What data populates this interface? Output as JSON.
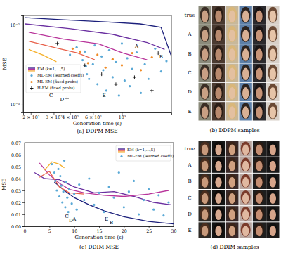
{
  "chart_data": [
    {
      "type": "scatter",
      "title": "(a) DDPM MSE",
      "x_label": "Generation time (s)",
      "y_label": "MSE",
      "log": true,
      "grid": false,
      "legend": "lower left",
      "xlim": [
        175,
        2400
      ],
      "ylim": [
        0.0008,
        0.013
      ],
      "xticks": [
        {
          "value": 200,
          "label": "2 × 10²"
        },
        {
          "value": 300,
          "label": "3 × 10²"
        },
        {
          "value": 400,
          "label": "4 × 10²"
        },
        {
          "value": 600,
          "label": "6 × 10²"
        },
        {
          "value": 1000,
          "label": "10³"
        }
      ],
      "yticks": [
        {
          "value": 0.001,
          "label": "10⁻³"
        },
        {
          "value": 0.01,
          "label": "10⁻²"
        }
      ],
      "series": [
        {
          "name": "EM (k=1,...,5)",
          "type": "line",
          "colors": [
            "#1b1f7b",
            "#6a2fa0",
            "#b8339a",
            "#e8604a",
            "#f5b02a"
          ],
          "x": [
            [
              181,
              357,
              748,
              1382,
              2000,
              2380
            ],
            [
              181,
              404,
              844,
              1564,
              2130
            ],
            [
              193,
              357,
              661,
              1017,
              1564
            ],
            [
              193,
              315,
              457,
              620
            ],
            [
              193,
              247,
              315
            ]
          ],
          "values": [
            [
              0.0122,
              0.0115,
              0.0108,
              0.0102,
              0.00924,
              0.00418
            ],
            [
              0.0102,
              0.00888,
              0.00757,
              0.00597,
              0.0049
            ],
            [
              0.00804,
              0.0066,
              0.00574,
              0.00443,
              0.00364
            ],
            [
              0.00621,
              0.0051,
              0.00443,
              0.00364
            ],
            [
              0.0049,
              0.00418,
              0.00343
            ]
          ]
        },
        {
          "name": "ML-EM (learned coeffs)",
          "type": "scatter",
          "marker": "circle",
          "color": "#5aa9d6",
          "x": [
            400,
            530,
            450,
            540,
            500,
            520,
            560,
            600,
            620,
            650,
            700,
            720,
            760,
            800,
            850,
            900,
            950,
            1000,
            1050,
            1100,
            1150,
            1200,
            1300,
            1400,
            1500,
            1600,
            1800,
            2000,
            2200
          ],
          "values": [
            0.0042,
            0.003,
            0.0052,
            0.0024,
            0.0036,
            0.0046,
            0.0021,
            0.0032,
            0.0055,
            0.0018,
            0.004,
            0.0027,
            0.0015,
            0.0048,
            0.0022,
            0.0034,
            0.0013,
            0.0058,
            0.002,
            0.0038,
            0.0017,
            0.0028,
            0.0045,
            0.0014,
            0.0032,
            0.0021,
            0.005,
            0.0026,
            0.0035
          ]
        },
        {
          "name": "ML-EM (fixed probs)",
          "type": "scatter",
          "marker": "circle",
          "color": "#f08a24",
          "x": [
            420,
            480,
            550,
            650,
            750,
            850,
            1000,
            1200,
            1400,
            1700
          ],
          "values": [
            0.005,
            0.0046,
            0.0033,
            0.0042,
            0.0029,
            0.0037,
            0.0031,
            0.0044,
            0.0027,
            0.0039
          ]
        },
        {
          "name": "H-EM (fixed probs)",
          "type": "scatter",
          "marker": "plus",
          "color": "#000000",
          "x": [
            320,
            380,
            520,
            700,
            900,
            1250,
            1700,
            1900
          ],
          "values": [
            0.0058,
            0.0012,
            0.0031,
            0.0024,
            0.0018,
            0.0022,
            0.0015,
            0.0044
          ]
        }
      ],
      "annotations": [
        {
          "text": "A",
          "x": 1300,
          "y": 0.0054
        },
        {
          "text": "B",
          "x": 2000,
          "y": 0.004
        },
        {
          "text": "C",
          "x": 286,
          "y": 0.00132
        },
        {
          "text": "D",
          "x": 348,
          "y": 0.00115
        },
        {
          "text": "E",
          "x": 729,
          "y": 0.00132
        }
      ]
    },
    {
      "type": "scatter",
      "title": "(c) DDIM MSE",
      "x_label": "Generation time (s)",
      "y_label": "MSE",
      "grid": false,
      "legend": "upper right",
      "xlim": [
        0,
        30
      ],
      "ylim": [
        0,
        0.07
      ],
      "xticks": [
        0,
        5,
        10,
        15,
        20,
        25,
        30
      ],
      "yticks": [
        {
          "value": 0,
          "label": "0.00"
        },
        {
          "value": 0.01,
          "label": "0.01"
        },
        {
          "value": 0.02,
          "label": "0.02"
        },
        {
          "value": 0.03,
          "label": "0.03"
        },
        {
          "value": 0.04,
          "label": "0.04"
        },
        {
          "value": 0.05,
          "label": "0.05"
        },
        {
          "value": 0.06,
          "label": "0.06"
        },
        {
          "value": 0.07,
          "label": "0.07"
        }
      ],
      "series": [
        {
          "name": "EM (k=1,...,5)",
          "type": "line",
          "colors": [
            "#1b1f7b",
            "#6a2fa0",
            "#b8339a",
            "#e8604a",
            "#f5b02a"
          ],
          "x": [
            [
              6,
              8,
              10,
              13,
              16,
              20,
              25,
              30
            ],
            [
              2,
              4,
              7,
              10,
              14,
              18,
              22,
              26,
              29.5
            ],
            [
              3,
              5,
              7,
              9,
              12,
              16,
              20,
              25,
              29
            ],
            [
              3,
              5,
              7,
              9,
              12
            ],
            [
              4,
              5.5,
              7,
              8
            ]
          ],
          "values": [
            [
              0.037,
              0.03,
              0.024,
              0.018,
              0.013,
              0.008,
              0.004,
              0.002
            ],
            [
              0.045,
              0.04,
              0.039,
              0.033,
              0.028,
              0.029,
              0.025,
              0.02,
              0.018
            ],
            [
              0.053,
              0.043,
              0.036,
              0.031,
              0.028,
              0.026,
              0.025,
              0.027,
              0.03
            ],
            [
              0.041,
              0.046,
              0.033,
              0.028,
              0.027
            ],
            [
              0.047,
              0.054,
              0.052,
              0.049
            ]
          ]
        },
        {
          "name": "ML-EM (learned coeffs)",
          "type": "scatter",
          "marker": "circle",
          "color": "#5aa9d6",
          "x": [
            5.5,
            6,
            6.2,
            6.5,
            6.8,
            7,
            7.2,
            7.4,
            7.6,
            7.8,
            8,
            8.2,
            8.4,
            8.6,
            8.8,
            9,
            9.5,
            10,
            10.5,
            11,
            12,
            13,
            14,
            15,
            16,
            17,
            18,
            19,
            20,
            21,
            22,
            23,
            24,
            25,
            26,
            27,
            28,
            29
          ],
          "values": [
            0.052,
            0.045,
            0.038,
            0.03,
            0.048,
            0.025,
            0.042,
            0.034,
            0.02,
            0.029,
            0.055,
            0.016,
            0.037,
            0.024,
            0.012,
            0.031,
            0.019,
            0.027,
            0.014,
            0.035,
            0.022,
            0.04,
            0.018,
            0.028,
            0.012,
            0.033,
            0.024,
            0.045,
            0.016,
            0.029,
            0.038,
            0.01,
            0.022,
            0.031,
            0.014,
            0.026,
            0.009,
            0.02
          ]
        }
      ],
      "annotations": [
        {
          "text": "A",
          "x": 10,
          "y": 0.006
        },
        {
          "text": "B",
          "x": 17.5,
          "y": 0.0035
        },
        {
          "text": "C",
          "x": 8.5,
          "y": 0.0085
        },
        {
          "text": "D",
          "x": 9.3,
          "y": 0.005
        },
        {
          "text": "E",
          "x": 16.5,
          "y": 0.006
        }
      ]
    }
  ],
  "image_panels": [
    {
      "caption": "(b) DDPM samples",
      "row_labels": [
        "true",
        "A",
        "B",
        "C",
        "D",
        "E"
      ]
    },
    {
      "caption": "(d) DDIM samples",
      "row_labels": [
        "true",
        "A",
        "B",
        "C",
        "D",
        "E"
      ]
    }
  ]
}
